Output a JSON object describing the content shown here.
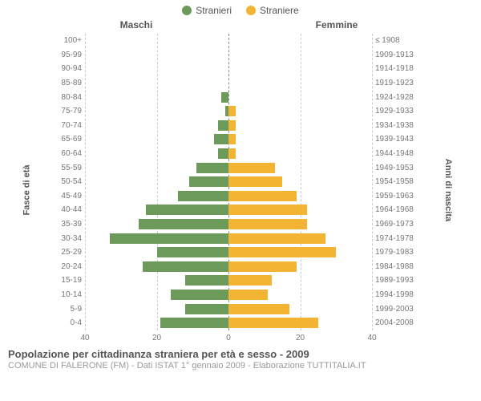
{
  "chart": {
    "type": "population-pyramid",
    "legend": [
      {
        "label": "Stranieri",
        "color": "#6b9a5b"
      },
      {
        "label": "Straniere",
        "color": "#f3b434"
      }
    ],
    "header_left": "Maschi",
    "header_right": "Femmine",
    "y_left_title": "Fasce di età",
    "y_right_title": "Anni di nascita",
    "x_max": 40,
    "x_ticks": [
      40,
      20,
      0,
      20,
      40
    ],
    "male_color": "#6b9a5b",
    "female_color": "#f3b434",
    "background_color": "#ffffff",
    "grid_color": "#cccccc",
    "center_color": "#888888",
    "rows": [
      {
        "age": "100+",
        "year": "≤ 1908",
        "m": 0,
        "f": 0
      },
      {
        "age": "95-99",
        "year": "1909-1913",
        "m": 0,
        "f": 0
      },
      {
        "age": "90-94",
        "year": "1914-1918",
        "m": 0,
        "f": 0
      },
      {
        "age": "85-89",
        "year": "1919-1923",
        "m": 0,
        "f": 0
      },
      {
        "age": "80-84",
        "year": "1924-1928",
        "m": 2,
        "f": 0
      },
      {
        "age": "75-79",
        "year": "1929-1933",
        "m": 1,
        "f": 2
      },
      {
        "age": "70-74",
        "year": "1934-1938",
        "m": 3,
        "f": 2
      },
      {
        "age": "65-69",
        "year": "1939-1943",
        "m": 4,
        "f": 2
      },
      {
        "age": "60-64",
        "year": "1944-1948",
        "m": 3,
        "f": 2
      },
      {
        "age": "55-59",
        "year": "1949-1953",
        "m": 9,
        "f": 13
      },
      {
        "age": "50-54",
        "year": "1954-1958",
        "m": 11,
        "f": 15
      },
      {
        "age": "45-49",
        "year": "1959-1963",
        "m": 14,
        "f": 19
      },
      {
        "age": "40-44",
        "year": "1964-1968",
        "m": 23,
        "f": 22
      },
      {
        "age": "35-39",
        "year": "1969-1973",
        "m": 25,
        "f": 22
      },
      {
        "age": "30-34",
        "year": "1974-1978",
        "m": 33,
        "f": 27
      },
      {
        "age": "25-29",
        "year": "1979-1983",
        "m": 20,
        "f": 30
      },
      {
        "age": "20-24",
        "year": "1984-1988",
        "m": 24,
        "f": 19
      },
      {
        "age": "15-19",
        "year": "1989-1993",
        "m": 12,
        "f": 12
      },
      {
        "age": "10-14",
        "year": "1994-1998",
        "m": 16,
        "f": 11
      },
      {
        "age": "5-9",
        "year": "1999-2003",
        "m": 12,
        "f": 17
      },
      {
        "age": "0-4",
        "year": "2004-2008",
        "m": 19,
        "f": 25
      }
    ]
  },
  "footer": {
    "title": "Popolazione per cittadinanza straniera per età e sesso - 2009",
    "subtitle": "COMUNE DI FALERONE (FM) - Dati ISTAT 1° gennaio 2009 - Elaborazione TUTTITALIA.IT"
  }
}
